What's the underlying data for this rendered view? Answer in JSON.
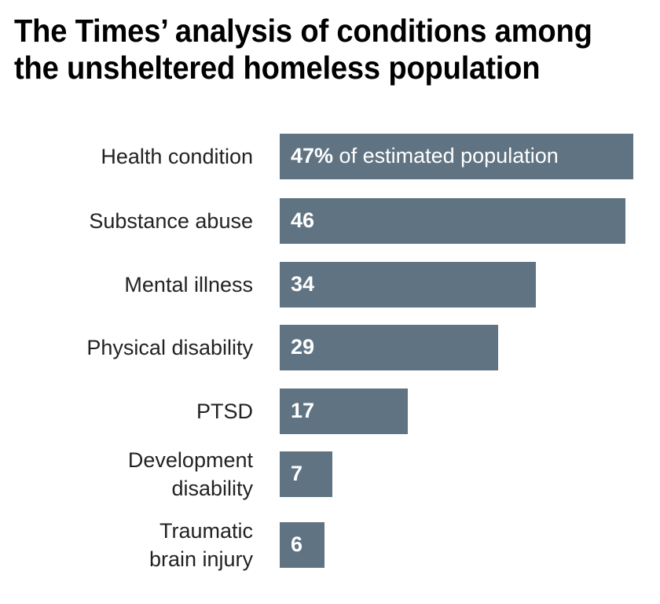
{
  "chart_data": {
    "type": "bar",
    "orientation": "horizontal",
    "title": "The Times’ analysis of conditions among the unsheltered homeless population",
    "title_lines": [
      "The Times’ analysis of conditions among",
      "the unsheltered homeless population"
    ],
    "categories": [
      "Health condition",
      "Substance abuse",
      "Mental illness",
      "Physical disability",
      "PTSD",
      "Development\ndisability",
      "Traumatic\nbrain injury"
    ],
    "values": [
      47,
      46,
      34,
      29,
      17,
      7,
      6
    ],
    "value_labels": [
      "47%",
      "46",
      "34",
      "29",
      "17",
      "7",
      "6"
    ],
    "first_label_suffix": " of estimated population",
    "unit": "% of estimated population",
    "xlabel": "",
    "ylabel": "",
    "xlim": [
      0,
      47
    ],
    "grid": false,
    "legend": "none",
    "bar_color": "#5f7382"
  }
}
